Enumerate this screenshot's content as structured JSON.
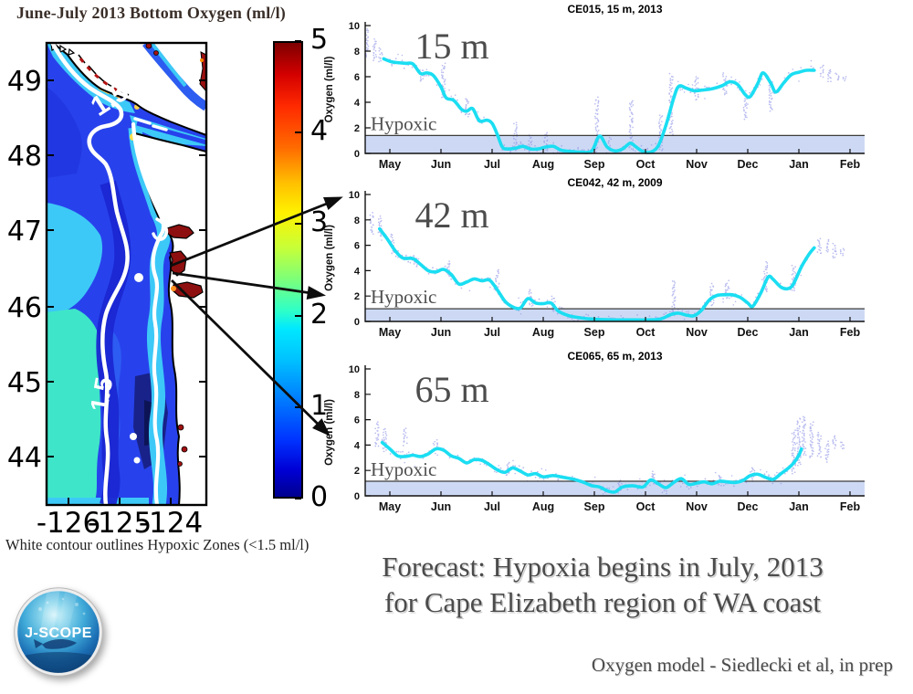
{
  "map_panel": {
    "title": "June-July 2013 Bottom Oxygen (ml/l)",
    "lat_labels": [
      "49",
      "48",
      "47",
      "46",
      "45",
      "44"
    ],
    "lon_labels": [
      "-126",
      "-125",
      "-124"
    ],
    "contour_label_upper": "1.5",
    "contour_label_lower": "1.5",
    "caption": "White contour outlines Hypoxic Zones  (<1.5 ml/l)",
    "colorbar": {
      "tick_labels": [
        "5",
        "4",
        "3",
        "2",
        "1",
        "0"
      ],
      "min": 0,
      "max": 5,
      "units": "ml/l"
    }
  },
  "chart_data": [
    {
      "type": "line",
      "station": "CE015",
      "title": "CE015, 15 m, 2013",
      "depth_label": "15 m",
      "ylabel": "Oxygen (ml/l)",
      "ylim": [
        0,
        10
      ],
      "yticks": [
        0,
        2,
        4,
        6,
        8,
        10
      ],
      "x_categories": [
        "May",
        "Jun",
        "Jul",
        "Aug",
        "Sep",
        "Oct",
        "Nov",
        "Dec",
        "Jan",
        "Feb"
      ],
      "x_unit_note": "months since May 1",
      "hypoxic_label": "Hypoxic",
      "hypoxic_threshold_mll": 1.4,
      "line_points_month_value": [
        [
          -0.12,
          7.4
        ],
        [
          0.05,
          7.15
        ],
        [
          0.3,
          7.05
        ],
        [
          0.45,
          7.0
        ],
        [
          0.6,
          6.25
        ],
        [
          0.72,
          6.3
        ],
        [
          0.85,
          6.1
        ],
        [
          1.0,
          5.2
        ],
        [
          1.1,
          4.35
        ],
        [
          1.25,
          4.15
        ],
        [
          1.4,
          3.45
        ],
        [
          1.5,
          3.3
        ],
        [
          1.62,
          3.5
        ],
        [
          1.75,
          2.55
        ],
        [
          1.9,
          2.6
        ],
        [
          2.0,
          2.35
        ],
        [
          2.1,
          1.5
        ],
        [
          2.2,
          0.5
        ],
        [
          2.3,
          0.35
        ],
        [
          2.45,
          0.4
        ],
        [
          2.6,
          0.55
        ],
        [
          2.75,
          0.35
        ],
        [
          2.9,
          0.35
        ],
        [
          3.05,
          0.5
        ],
        [
          3.2,
          0.55
        ],
        [
          3.35,
          0.25
        ],
        [
          3.55,
          0.15
        ],
        [
          3.75,
          0.1
        ],
        [
          3.95,
          0.2
        ],
        [
          4.1,
          1.35
        ],
        [
          4.25,
          0.5
        ],
        [
          4.4,
          0.2
        ],
        [
          4.55,
          0.35
        ],
        [
          4.7,
          0.8
        ],
        [
          4.8,
          0.55
        ],
        [
          4.95,
          0.15
        ],
        [
          5.1,
          0.1
        ],
        [
          5.25,
          0.6
        ],
        [
          5.4,
          2.2
        ],
        [
          5.55,
          4.3
        ],
        [
          5.65,
          5.25
        ],
        [
          5.8,
          5.1
        ],
        [
          5.95,
          4.9
        ],
        [
          6.1,
          4.95
        ],
        [
          6.3,
          5.05
        ],
        [
          6.5,
          5.3
        ],
        [
          6.65,
          5.6
        ],
        [
          6.8,
          5.4
        ],
        [
          6.95,
          4.6
        ],
        [
          7.05,
          4.45
        ],
        [
          7.2,
          5.5
        ],
        [
          7.3,
          6.3
        ],
        [
          7.45,
          5.5
        ],
        [
          7.55,
          4.8
        ],
        [
          7.7,
          5.5
        ],
        [
          7.85,
          6.15
        ],
        [
          8.0,
          6.35
        ],
        [
          8.15,
          6.5
        ],
        [
          8.3,
          6.5
        ]
      ],
      "scatter_spikes_month_lo_hi": [
        [
          -0.45,
          7.6,
          9.8
        ],
        [
          -0.3,
          7.3,
          9.0
        ],
        [
          -0.18,
          7.2,
          8.2
        ],
        [
          0.62,
          5.6,
          6.6
        ],
        [
          1.05,
          4.3,
          7.0
        ],
        [
          1.5,
          2.9,
          4.4
        ],
        [
          2.45,
          0.2,
          2.4
        ],
        [
          2.75,
          0.15,
          1.5
        ],
        [
          3.05,
          0.2,
          1.7
        ],
        [
          4.05,
          0.3,
          4.35
        ],
        [
          4.3,
          0.2,
          1.2
        ],
        [
          4.72,
          0.3,
          4.2
        ],
        [
          5.3,
          0.2,
          3.0
        ],
        [
          5.5,
          1.5,
          6.2
        ],
        [
          6.0,
          4.2,
          6.0
        ],
        [
          6.55,
          4.6,
          6.3
        ],
        [
          6.95,
          2.7,
          4.7
        ],
        [
          7.45,
          3.3,
          5.6
        ],
        [
          8.45,
          6.0,
          6.9
        ],
        [
          8.6,
          5.6,
          6.6
        ],
        [
          8.75,
          5.7,
          6.3
        ],
        [
          8.9,
          5.7,
          6.1
        ]
      ],
      "scatter_seed": 11
    },
    {
      "type": "line",
      "station": "CE042",
      "title": "CE042, 42 m, 2009",
      "depth_label": "42 m",
      "ylabel": "Oxygen (ml/l)",
      "ylim": [
        0,
        10
      ],
      "yticks": [
        0,
        2,
        4,
        6,
        8,
        10
      ],
      "x_categories": [
        "May",
        "Jun",
        "Jul",
        "Aug",
        "Sep",
        "Oct",
        "Nov",
        "Dec",
        "Jan",
        "Feb"
      ],
      "x_unit_note": "months since May 1",
      "hypoxic_label": "Hypoxic",
      "hypoxic_threshold_mll": 1.0,
      "line_points_month_value": [
        [
          -0.2,
          7.3
        ],
        [
          -0.05,
          6.5
        ],
        [
          0.1,
          5.6
        ],
        [
          0.25,
          5.0
        ],
        [
          0.45,
          4.95
        ],
        [
          0.6,
          4.5
        ],
        [
          0.75,
          4.0
        ],
        [
          0.9,
          3.9
        ],
        [
          1.05,
          4.1
        ],
        [
          1.2,
          3.7
        ],
        [
          1.35,
          2.95
        ],
        [
          1.5,
          3.1
        ],
        [
          1.65,
          3.35
        ],
        [
          1.8,
          3.2
        ],
        [
          1.95,
          3.25
        ],
        [
          2.1,
          2.5
        ],
        [
          2.25,
          1.6
        ],
        [
          2.4,
          1.15
        ],
        [
          2.55,
          1.05
        ],
        [
          2.7,
          1.8
        ],
        [
          2.85,
          1.45
        ],
        [
          3.0,
          1.4
        ],
        [
          3.15,
          1.45
        ],
        [
          3.3,
          0.8
        ],
        [
          3.5,
          0.45
        ],
        [
          3.7,
          0.3
        ],
        [
          3.9,
          0.2
        ],
        [
          4.15,
          0.15
        ],
        [
          4.45,
          0.12
        ],
        [
          4.75,
          0.12
        ],
        [
          5.05,
          0.12
        ],
        [
          5.3,
          0.2
        ],
        [
          5.5,
          0.55
        ],
        [
          5.65,
          0.65
        ],
        [
          5.8,
          0.5
        ],
        [
          5.95,
          0.45
        ],
        [
          6.1,
          0.9
        ],
        [
          6.25,
          1.7
        ],
        [
          6.4,
          2.05
        ],
        [
          6.55,
          2.1
        ],
        [
          6.7,
          2.1
        ],
        [
          6.85,
          1.9
        ],
        [
          7.0,
          1.45
        ],
        [
          7.1,
          1.2
        ],
        [
          7.25,
          2.2
        ],
        [
          7.4,
          3.5
        ],
        [
          7.5,
          3.3
        ],
        [
          7.65,
          2.7
        ],
        [
          7.8,
          2.6
        ],
        [
          7.9,
          3.0
        ],
        [
          8.05,
          4.3
        ],
        [
          8.2,
          5.3
        ],
        [
          8.3,
          5.8
        ]
      ],
      "scatter_spikes_month_lo_hi": [
        [
          -0.35,
          6.9,
          8.6
        ],
        [
          -0.2,
          6.7,
          8.3
        ],
        [
          0.05,
          5.4,
          6.9
        ],
        [
          0.5,
          4.3,
          5.2
        ],
        [
          1.15,
          3.5,
          4.7
        ],
        [
          2.1,
          2.4,
          4.1
        ],
        [
          2.75,
          1.2,
          2.6
        ],
        [
          3.2,
          0.8,
          2.0
        ],
        [
          5.55,
          0.5,
          3.2
        ],
        [
          6.3,
          1.3,
          3.0
        ],
        [
          6.6,
          1.8,
          3.2
        ],
        [
          7.35,
          2.3,
          4.7
        ],
        [
          7.9,
          2.4,
          4.4
        ],
        [
          8.4,
          5.3,
          6.5
        ],
        [
          8.55,
          5.5,
          6.4
        ],
        [
          8.7,
          5.0,
          6.1
        ],
        [
          8.85,
          5.2,
          5.8
        ]
      ],
      "scatter_seed": 22
    },
    {
      "type": "line",
      "station": "CE065",
      "title": "CE065, 65 m, 2013",
      "depth_label": "65 m",
      "ylabel": "Oxygen (ml/l)",
      "ylim": [
        0,
        10
      ],
      "yticks": [
        0,
        2,
        4,
        6,
        8,
        10
      ],
      "x_categories": [
        "May",
        "Jun",
        "Jul",
        "Aug",
        "Sep",
        "Oct",
        "Nov",
        "Dec",
        "Jan",
        "Feb"
      ],
      "x_unit_note": "months since May 1",
      "hypoxic_label": "Hypoxic",
      "hypoxic_threshold_mll": 1.15,
      "line_points_month_value": [
        [
          -0.15,
          4.2
        ],
        [
          0.0,
          3.7
        ],
        [
          0.15,
          3.15
        ],
        [
          0.3,
          3.1
        ],
        [
          0.45,
          3.2
        ],
        [
          0.6,
          3.1
        ],
        [
          0.75,
          3.3
        ],
        [
          0.9,
          3.7
        ],
        [
          1.05,
          3.6
        ],
        [
          1.2,
          3.15
        ],
        [
          1.35,
          2.95
        ],
        [
          1.5,
          2.6
        ],
        [
          1.65,
          2.85
        ],
        [
          1.8,
          2.8
        ],
        [
          1.95,
          2.45
        ],
        [
          2.1,
          2.05
        ],
        [
          2.25,
          1.85
        ],
        [
          2.4,
          2.2
        ],
        [
          2.55,
          1.95
        ],
        [
          2.7,
          1.65
        ],
        [
          2.85,
          1.75
        ],
        [
          3.0,
          1.5
        ],
        [
          3.2,
          1.6
        ],
        [
          3.4,
          1.45
        ],
        [
          3.6,
          1.3
        ],
        [
          3.8,
          1.05
        ],
        [
          3.95,
          0.8
        ],
        [
          4.1,
          0.7
        ],
        [
          4.25,
          0.4
        ],
        [
          4.4,
          0.3
        ],
        [
          4.55,
          0.7
        ],
        [
          4.75,
          0.8
        ],
        [
          4.95,
          0.7
        ],
        [
          5.1,
          1.25
        ],
        [
          5.25,
          0.95
        ],
        [
          5.4,
          0.65
        ],
        [
          5.55,
          1.05
        ],
        [
          5.7,
          1.35
        ],
        [
          5.85,
          0.9
        ],
        [
          6.0,
          1.0
        ],
        [
          6.15,
          1.1
        ],
        [
          6.3,
          0.95
        ],
        [
          6.45,
          1.15
        ],
        [
          6.6,
          1.1
        ],
        [
          6.75,
          1.05
        ],
        [
          6.9,
          1.2
        ],
        [
          7.05,
          1.6
        ],
        [
          7.2,
          1.7
        ],
        [
          7.35,
          1.45
        ],
        [
          7.5,
          1.3
        ],
        [
          7.65,
          1.75
        ],
        [
          7.8,
          2.2
        ],
        [
          7.9,
          2.6
        ],
        [
          8.0,
          3.2
        ],
        [
          8.05,
          3.7
        ]
      ],
      "scatter_spikes_month_lo_hi": [
        [
          -0.25,
          3.9,
          5.8
        ],
        [
          -0.1,
          3.5,
          5.3
        ],
        [
          0.3,
          4.0,
          5.4
        ],
        [
          0.9,
          3.9,
          4.4
        ],
        [
          2.3,
          1.6,
          2.6
        ],
        [
          4.5,
          0.3,
          1.2
        ],
        [
          5.15,
          0.9,
          1.9
        ],
        [
          6.45,
          0.8,
          1.7
        ],
        [
          7.1,
          1.2,
          2.3
        ],
        [
          7.9,
          1.8,
          5.2
        ],
        [
          8.0,
          2.4,
          6.1
        ],
        [
          8.1,
          3.2,
          6.3
        ],
        [
          8.25,
          3.0,
          5.8
        ],
        [
          8.4,
          3.0,
          5.0
        ],
        [
          8.55,
          2.7,
          4.3
        ],
        [
          8.7,
          3.8,
          4.7
        ],
        [
          8.85,
          3.7,
          4.3
        ]
      ],
      "scatter_seed": 33
    }
  ],
  "footer": {
    "headline_line1": "Forecast: Hypoxia begins in July, 2013",
    "headline_line2": "for Cape Elizabeth region of WA coast",
    "attribution": "Oxygen model - Siedlecki et al, in prep"
  },
  "logo": {
    "label": "J-SCOPE"
  },
  "colors": {
    "oxygen_line": "#1bdef2",
    "scatter_dots": "#8d92e6",
    "hypoxic_band": "#cdd9f4",
    "threshold_line": "#3c3c3c",
    "depth_label_gray": "#4c4c4c"
  }
}
